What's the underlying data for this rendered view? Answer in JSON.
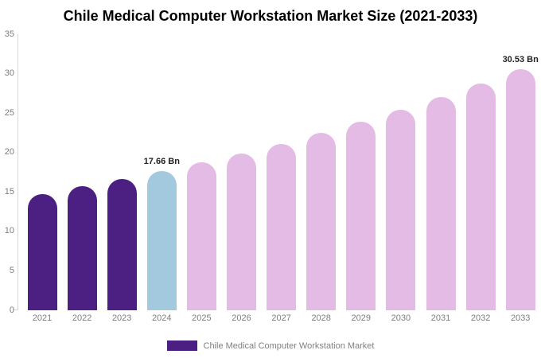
{
  "title": "Chile Medical Computer Workstation Market Size (2021-2033)",
  "legend": {
    "label": "Chile Medical Computer Workstation Market"
  },
  "colors": {
    "historical_bar": "#4C2083",
    "highlight_bar": "#A3C9DF",
    "forecast_bar": "#E4BBE5",
    "axis_line": "#d9d9d9",
    "tick_text": "#7d7d7d",
    "data_label_text": "#222222",
    "legend_text": "#808080",
    "background": "#ffffff"
  },
  "chart_data": {
    "type": "bar",
    "title": "Chile Medical Computer Workstation Market Size (2021-2033)",
    "xlabel": "",
    "ylabel": "",
    "ylim": [
      0,
      35
    ],
    "y_ticks": [
      0,
      5,
      10,
      15,
      20,
      25,
      30,
      35
    ],
    "grid": false,
    "legend_position": "bottom",
    "unit": "Bn",
    "categories": [
      "2021",
      "2022",
      "2023",
      "2024",
      "2025",
      "2026",
      "2027",
      "2028",
      "2029",
      "2030",
      "2031",
      "2032",
      "2033"
    ],
    "values": [
      14.7,
      15.7,
      16.6,
      17.66,
      18.8,
      19.9,
      21.1,
      22.5,
      23.9,
      25.4,
      27.0,
      28.7,
      30.53
    ],
    "bar_roles": [
      "historical",
      "historical",
      "historical",
      "highlight",
      "forecast",
      "forecast",
      "forecast",
      "forecast",
      "forecast",
      "forecast",
      "forecast",
      "forecast",
      "forecast"
    ],
    "data_labels": [
      null,
      null,
      null,
      "17.66 Bn",
      null,
      null,
      null,
      null,
      null,
      null,
      null,
      null,
      "30.53 Bn"
    ],
    "series": [
      {
        "name": "Chile Medical Computer Workstation Market",
        "values": [
          14.7,
          15.7,
          16.6,
          17.66,
          18.8,
          19.9,
          21.1,
          22.5,
          23.9,
          25.4,
          27.0,
          28.7,
          30.53
        ]
      }
    ]
  }
}
